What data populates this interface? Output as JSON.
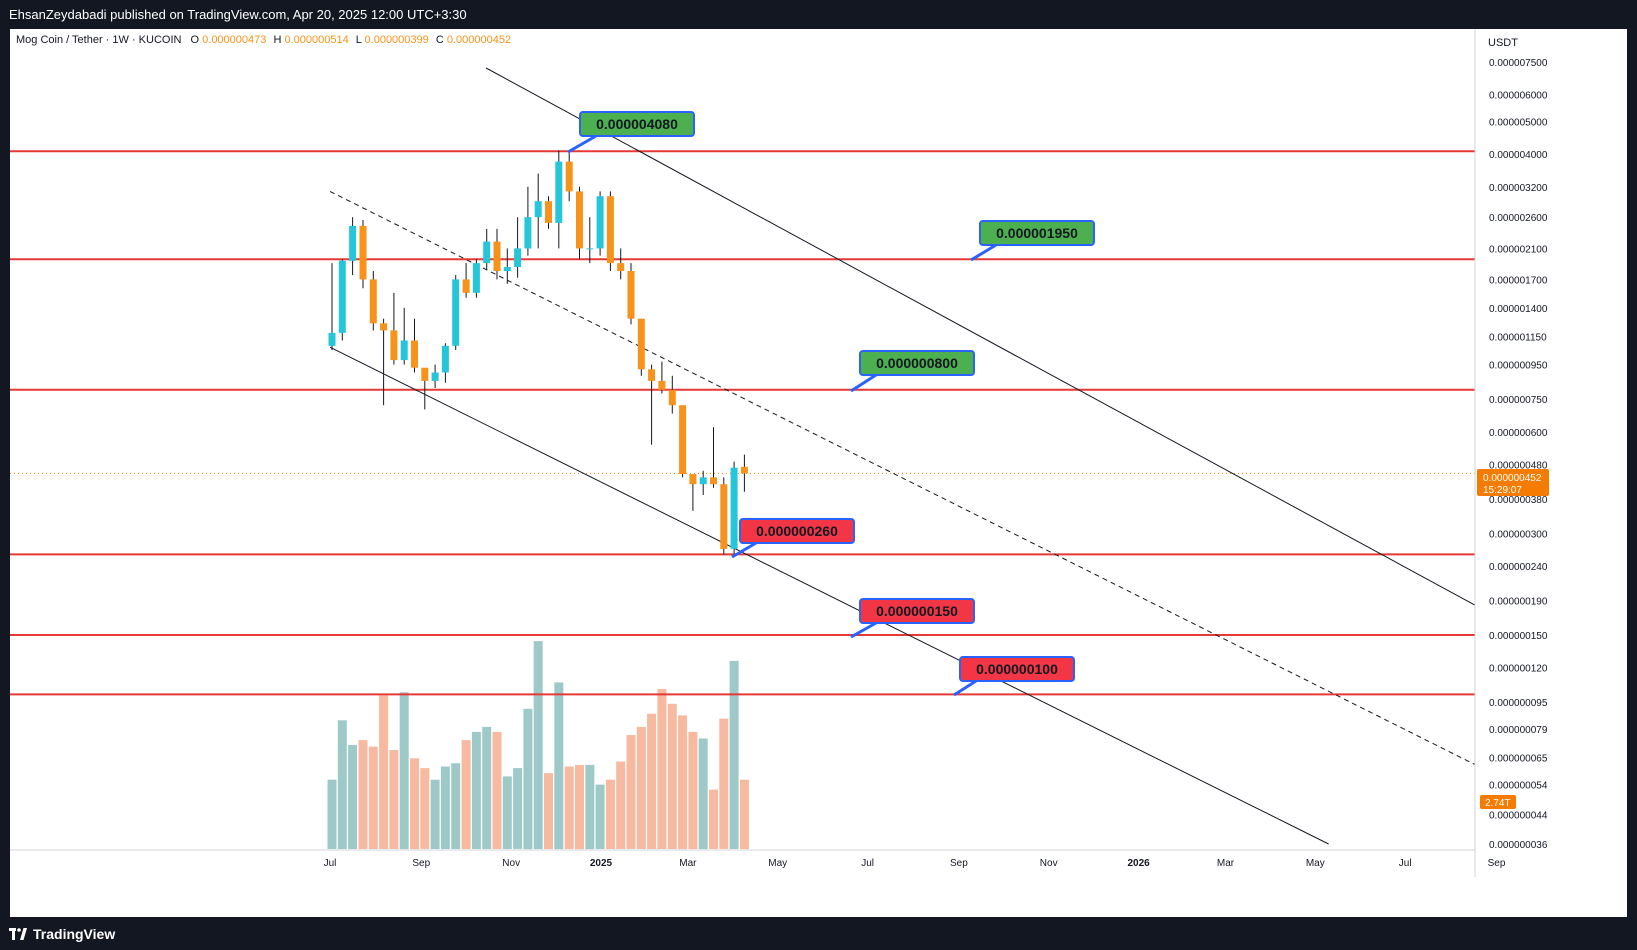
{
  "header": {
    "published": "EhsanZeydabadi published on TradingView.com, Apr 20, 2025 12:00 UTC+3:30"
  },
  "legend": {
    "symbol": "Mog Coin / Tether · 1W · KUCOIN",
    "o_label": "O",
    "o_value": "0.000000473",
    "h_label": "H",
    "h_value": "0.000000514",
    "l_label": "L",
    "l_value": "0.000000399",
    "c_label": "C",
    "c_value": "0.000000452"
  },
  "price_axis": {
    "currency": "USDT",
    "ticks": [
      "0.000007500",
      "0.000006000",
      "0.000005000",
      "0.000004000",
      "0.000003200",
      "0.000002600",
      "0.000002100",
      "0.000001700",
      "0.000001400",
      "0.000001150",
      "0.000000950",
      "0.000000750",
      "0.000000600",
      "0.000000480",
      "0.000000380",
      "0.000000300",
      "0.000000240",
      "0.000000190",
      "0.000000150",
      "0.000000120",
      "0.000000095",
      "0.000000079",
      "0.000000065",
      "0.000000054",
      "0.000000044",
      "0.000000036"
    ],
    "last_price": "0.000000452",
    "countdown": "15:29:07",
    "volume_badge": "2.74T"
  },
  "time_axis": {
    "ticks": [
      "Jul",
      "Sep",
      "Nov",
      "2025",
      "Mar",
      "May",
      "Jul",
      "Sep",
      "Nov",
      "2026",
      "Mar",
      "May",
      "Jul",
      "Sep"
    ]
  },
  "annotations": [
    {
      "text": "0.000004080",
      "kind": "resistance"
    },
    {
      "text": "0.000001950",
      "kind": "resistance"
    },
    {
      "text": "0.000000800",
      "kind": "resistance"
    },
    {
      "text": "0.000000260",
      "kind": "support"
    },
    {
      "text": "0.000000150",
      "kind": "support"
    },
    {
      "text": "0.000000100",
      "kind": "support"
    }
  ],
  "footer": {
    "brand": "TradingView"
  },
  "colors": {
    "up": "#26c6da",
    "down": "#f7931a",
    "level_line": "#e53935",
    "label_green": "#4caf50",
    "label_red": "#f23645",
    "label_border": "#2962ff",
    "vol_up": "#9ec9c9",
    "vol_down": "#f7b9a0",
    "price_badge": "#f57c00"
  },
  "chart_data": {
    "type": "candlestick",
    "title": "Mog Coin / Tether · 1W · KUCOIN",
    "y_scale": "log",
    "ylim": [
      3.6e-08,
      7.5e-06
    ],
    "x_range": [
      "2024-07-01",
      "2026-09-01"
    ],
    "horizontal_levels": [
      4.08e-06,
      1.95e-06,
      8e-07,
      2.6e-07,
      1.5e-07,
      1e-07
    ],
    "channel": {
      "upper": [
        [
          "2024-10-15",
          7.2e-06
        ],
        [
          "2026-09-25",
          1.49e-07
        ]
      ],
      "middle": [
        [
          "2024-07-01",
          3.1e-06
        ],
        [
          "2026-09-25",
          5.1e-08
        ]
      ],
      "lower": [
        [
          "2024-07-01",
          1.07e-06
        ],
        [
          "2026-05-10",
          3.6e-08
        ]
      ]
    },
    "candles": [
      {
        "t": "2024-06-30",
        "o": 1.08e-06,
        "h": 1.9e-06,
        "l": 1.05e-06,
        "c": 1.18e-06,
        "v": 0.42
      },
      {
        "t": "2024-07-07",
        "o": 1.18e-06,
        "h": 1.95e-06,
        "l": 1.12e-06,
        "c": 1.93e-06,
        "v": 0.78
      },
      {
        "t": "2024-07-14",
        "o": 1.93e-06,
        "h": 2.6e-06,
        "l": 1.75e-06,
        "c": 2.45e-06,
        "v": 0.63
      },
      {
        "t": "2024-07-21",
        "o": 2.45e-06,
        "h": 2.55e-06,
        "l": 1.6e-06,
        "c": 1.7e-06,
        "v": 0.66
      },
      {
        "t": "2024-07-28",
        "o": 1.7e-06,
        "h": 1.8e-06,
        "l": 1.2e-06,
        "c": 1.26e-06,
        "v": 0.62
      },
      {
        "t": "2024-08-04",
        "o": 1.26e-06,
        "h": 1.3e-06,
        "l": 7.2e-07,
        "c": 1.2e-06,
        "v": 0.93
      },
      {
        "t": "2024-08-11",
        "o": 1.2e-06,
        "h": 1.55e-06,
        "l": 9.5e-07,
        "c": 9.8e-07,
        "v": 0.6
      },
      {
        "t": "2024-08-18",
        "o": 9.8e-07,
        "h": 1.4e-06,
        "l": 9.5e-07,
        "c": 1.12e-06,
        "v": 0.95
      },
      {
        "t": "2024-08-25",
        "o": 1.12e-06,
        "h": 1.3e-06,
        "l": 9e-07,
        "c": 9.3e-07,
        "v": 0.55
      },
      {
        "t": "2024-09-01",
        "o": 9.3e-07,
        "h": 9e-07,
        "l": 7e-07,
        "c": 8.5e-07,
        "v": 0.49
      },
      {
        "t": "2024-09-08",
        "o": 8.5e-07,
        "h": 9.5e-07,
        "l": 8.1e-07,
        "c": 9e-07,
        "v": 0.42
      },
      {
        "t": "2024-09-15",
        "o": 9e-07,
        "h": 1.1e-06,
        "l": 8.4e-07,
        "c": 1.08e-06,
        "v": 0.5
      },
      {
        "t": "2024-09-22",
        "o": 1.08e-06,
        "h": 1.75e-06,
        "l": 1.05e-06,
        "c": 1.7e-06,
        "v": 0.52
      },
      {
        "t": "2024-09-29",
        "o": 1.7e-06,
        "h": 1.9e-06,
        "l": 1.5e-06,
        "c": 1.55e-06,
        "v": 0.66
      },
      {
        "t": "2024-10-06",
        "o": 1.55e-06,
        "h": 1.95e-06,
        "l": 1.5e-06,
        "c": 1.9e-06,
        "v": 0.71
      },
      {
        "t": "2024-10-13",
        "o": 1.9e-06,
        "h": 2.4e-06,
        "l": 1.82e-06,
        "c": 2.2e-06,
        "v": 0.74
      },
      {
        "t": "2024-10-20",
        "o": 2.2e-06,
        "h": 2.4e-06,
        "l": 1.7e-06,
        "c": 1.8e-06,
        "v": 0.71
      },
      {
        "t": "2024-10-27",
        "o": 1.8e-06,
        "h": 2.1e-06,
        "l": 1.65e-06,
        "c": 1.85e-06,
        "v": 0.44
      },
      {
        "t": "2024-11-03",
        "o": 1.85e-06,
        "h": 2.6e-06,
        "l": 1.72e-06,
        "c": 2.1e-06,
        "v": 0.49
      },
      {
        "t": "2024-11-10",
        "o": 2.1e-06,
        "h": 3.2e-06,
        "l": 2e-06,
        "c": 2.6e-06,
        "v": 0.85
      },
      {
        "t": "2024-11-17",
        "o": 2.6e-06,
        "h": 3.5e-06,
        "l": 2.1e-06,
        "c": 2.9e-06,
        "v": 1.26
      },
      {
        "t": "2024-11-24",
        "o": 2.9e-06,
        "h": 3e-06,
        "l": 2.4e-06,
        "c": 2.5e-06,
        "v": 0.46
      },
      {
        "t": "2024-12-01",
        "o": 2.5e-06,
        "h": 4.1e-06,
        "l": 2.1e-06,
        "c": 3.8e-06,
        "v": 1.01
      },
      {
        "t": "2024-12-08",
        "o": 3.8e-06,
        "h": 4.1e-06,
        "l": 2.9e-06,
        "c": 3.1e-06,
        "v": 0.5
      },
      {
        "t": "2024-12-15",
        "o": 3.1e-06,
        "h": 3.2e-06,
        "l": 1.95e-06,
        "c": 2.1e-06,
        "v": 0.51
      },
      {
        "t": "2024-12-22",
        "o": 2.1e-06,
        "h": 2.6e-06,
        "l": 1.9e-06,
        "c": 2.1e-06,
        "v": 0.51
      },
      {
        "t": "2024-12-29",
        "o": 2.1e-06,
        "h": 3.1e-06,
        "l": 2e-06,
        "c": 3e-06,
        "v": 0.39
      },
      {
        "t": "2025-01-05",
        "o": 3e-06,
        "h": 3.1e-06,
        "l": 1.8e-06,
        "c": 1.9e-06,
        "v": 0.42
      },
      {
        "t": "2025-01-12",
        "o": 1.9e-06,
        "h": 2.1e-06,
        "l": 1.7e-06,
        "c": 1.8e-06,
        "v": 0.53
      },
      {
        "t": "2025-01-19",
        "o": 1.8e-06,
        "h": 1.9e-06,
        "l": 1.25e-06,
        "c": 1.3e-06,
        "v": 0.69
      },
      {
        "t": "2025-01-26",
        "o": 1.3e-06,
        "h": 1.3e-06,
        "l": 8.8e-07,
        "c": 9.2e-07,
        "v": 0.74
      },
      {
        "t": "2025-02-02",
        "o": 9.2e-07,
        "h": 9.5e-07,
        "l": 5.5e-07,
        "c": 8.5e-07,
        "v": 0.82
      },
      {
        "t": "2025-02-09",
        "o": 8.5e-07,
        "h": 9.7e-07,
        "l": 7.8e-07,
        "c": 8e-07,
        "v": 0.97
      },
      {
        "t": "2025-02-16",
        "o": 8e-07,
        "h": 8.8e-07,
        "l": 6.8e-07,
        "c": 7.2e-07,
        "v": 0.88
      },
      {
        "t": "2025-02-23",
        "o": 7.2e-07,
        "h": 7e-07,
        "l": 4.4e-07,
        "c": 4.5e-07,
        "v": 0.81
      },
      {
        "t": "2025-03-02",
        "o": 4.5e-07,
        "h": 4.5e-07,
        "l": 3.5e-07,
        "c": 4.2e-07,
        "v": 0.71
      },
      {
        "t": "2025-03-09",
        "o": 4.2e-07,
        "h": 4.6e-07,
        "l": 3.9e-07,
        "c": 4.4e-07,
        "v": 0.67
      },
      {
        "t": "2025-03-16",
        "o": 4.4e-07,
        "h": 6.2e-07,
        "l": 4.1e-07,
        "c": 4.2e-07,
        "v": 0.36
      },
      {
        "t": "2025-03-23",
        "o": 4.2e-07,
        "h": 4.4e-07,
        "l": 2.6e-07,
        "c": 2.7e-07,
        "v": 0.79
      },
      {
        "t": "2025-03-30",
        "o": 2.7e-07,
        "h": 4.9e-07,
        "l": 2.6e-07,
        "c": 4.7e-07,
        "v": 1.14
      },
      {
        "t": "2025-04-06",
        "o": 4.73e-07,
        "h": 5.14e-07,
        "l": 3.99e-07,
        "c": 4.52e-07,
        "v": 0.42
      }
    ],
    "volume_unit": "T"
  }
}
